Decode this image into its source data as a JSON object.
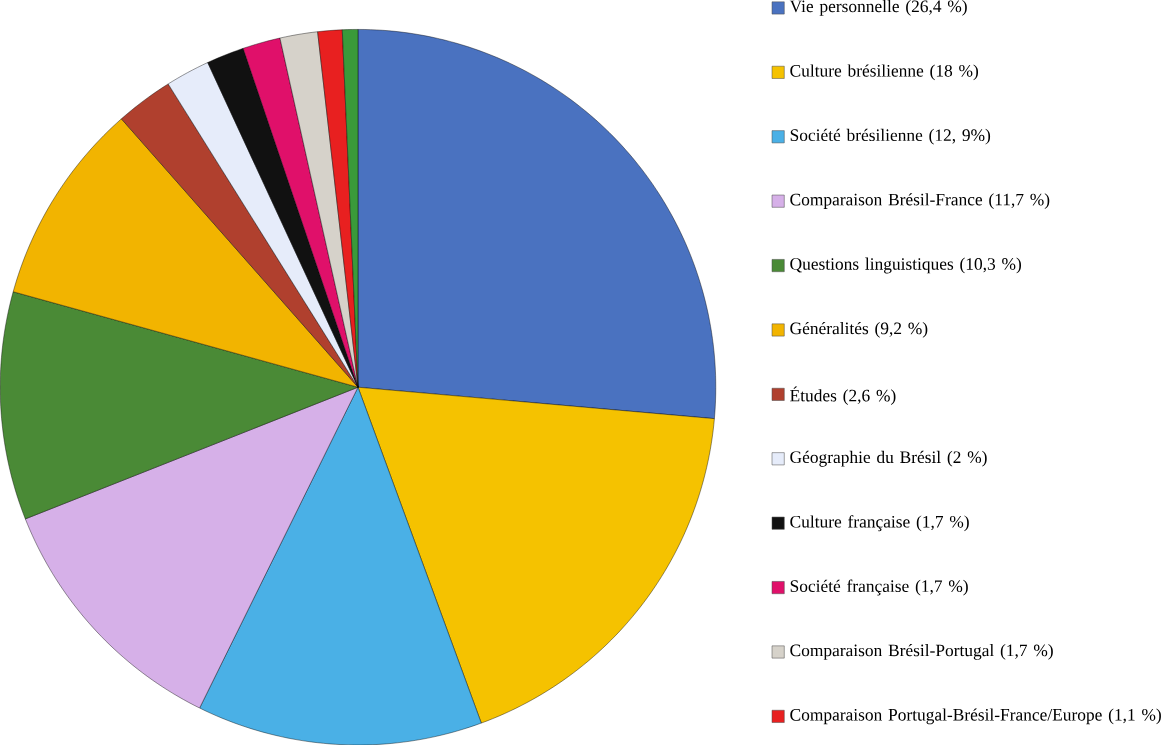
{
  "chart_data": {
    "type": "pie",
    "categories": [
      "Vie personnelle (26,4 %)",
      "Culture brésilienne (18 %)",
      "Société brésilienne (12, 9%)",
      "Comparaison Brésil-France (11,7 %)",
      "Questions linguistiques (10,3 %)",
      "Généralités (9,2 %)",
      "Études (2,6 %)",
      "Géographie du Brésil (2 %)",
      "Culture française (1,7 %)",
      "Société française (1,7 %)",
      "Comparaison Brésil-Portugal (1,7 %)",
      "Comparaison Portugal-Brésil-France/Europe (1,1 %)",
      null
    ],
    "values": [
      26.4,
      18,
      12.9,
      11.7,
      10.3,
      9.2,
      2.6,
      2,
      1.7,
      1.7,
      1.7,
      1.1,
      0.7
    ],
    "colors": [
      "#4a72c0",
      "#f5c200",
      "#4ab0e6",
      "#d6b0e8",
      "#4a8a36",
      "#f2b400",
      "#b0402e",
      "#e6ecfa",
      "#111111",
      "#e0106a",
      "#d6d2ca",
      "#e82020",
      "#3a9a3a"
    ],
    "legend": "right"
  }
}
